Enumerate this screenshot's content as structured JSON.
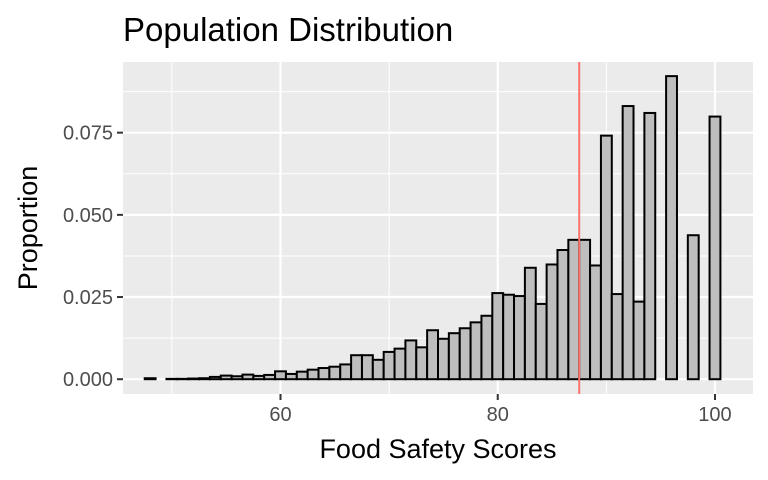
{
  "chart_data": {
    "type": "bar",
    "title": "Population Distribution",
    "xlabel": "Food Safety Scores",
    "ylabel": "Proportion",
    "xlim": [
      45.5,
      103.5
    ],
    "ylim": [
      -0.0045,
      0.0965
    ],
    "x_ticks": [
      60,
      80,
      100
    ],
    "x_tick_labels": [
      "60",
      "80",
      "100"
    ],
    "y_ticks": [
      0,
      0.025,
      0.05,
      0.075
    ],
    "y_tick_labels": [
      "0.000",
      "0.025",
      "0.050",
      "0.075"
    ],
    "bin_width": 1,
    "x": [
      48,
      49,
      50,
      51,
      52,
      53,
      54,
      55,
      56,
      57,
      58,
      59,
      60,
      61,
      62,
      63,
      64,
      65,
      66,
      67,
      68,
      69,
      70,
      71,
      72,
      73,
      74,
      75,
      76,
      77,
      78,
      79,
      80,
      81,
      82,
      83,
      84,
      85,
      86,
      87,
      88,
      89,
      90,
      91,
      92,
      93,
      94,
      95,
      96,
      97,
      98,
      99,
      100
    ],
    "values": [
      0.0003,
      0,
      0.0001,
      0.0001,
      0.0002,
      0.0003,
      0.0007,
      0.0011,
      0.0009,
      0.0014,
      0.001,
      0.0013,
      0.0024,
      0.0016,
      0.0023,
      0.0029,
      0.0034,
      0.0038,
      0.0045,
      0.0073,
      0.0073,
      0.0059,
      0.0083,
      0.0093,
      0.0118,
      0.0097,
      0.0149,
      0.0123,
      0.014,
      0.0155,
      0.0173,
      0.0193,
      0.0262,
      0.0257,
      0.0253,
      0.0339,
      0.0229,
      0.0349,
      0.0393,
      0.0424,
      0.0424,
      0.0346,
      0.0741,
      0.0259,
      0.0831,
      0.0236,
      0.081,
      0,
      0.0922,
      0,
      0.0438,
      0,
      0.0799
    ],
    "reference_line_x": 87.5,
    "grid": true,
    "bar_color": "#bebebe",
    "bar_outline": "#000000",
    "panel_background": "#ebebeb",
    "grid_color": "#ffffff",
    "reference_line_color": "#f8766d"
  }
}
